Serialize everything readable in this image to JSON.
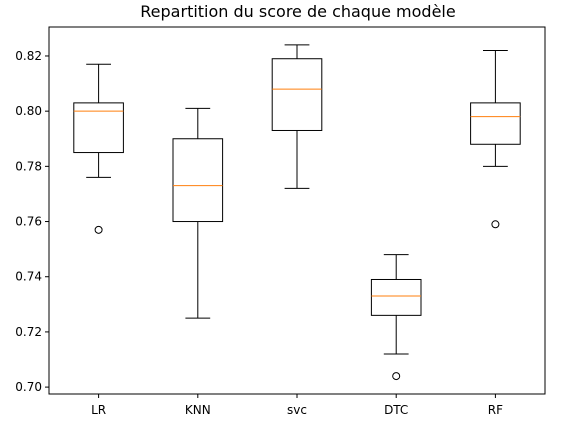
{
  "chart_data": {
    "type": "box",
    "title": "Repartition du score de chaque modèle",
    "xlabel": "",
    "ylabel": "",
    "ylim": [
      0.6975,
      0.8305
    ],
    "yticks": [
      0.7,
      0.72,
      0.74,
      0.76,
      0.78,
      0.8,
      0.82
    ],
    "ytick_labels": [
      "0.70",
      "0.72",
      "0.74",
      "0.76",
      "0.78",
      "0.80",
      "0.82"
    ],
    "categories": [
      "LR",
      "KNN",
      "svc",
      "DTC",
      "RF"
    ],
    "boxes": [
      {
        "name": "LR",
        "whisker_low": 0.776,
        "q1": 0.785,
        "median": 0.8,
        "q3": 0.803,
        "whisker_high": 0.817,
        "outliers": [
          0.757
        ]
      },
      {
        "name": "KNN",
        "whisker_low": 0.725,
        "q1": 0.76,
        "median": 0.773,
        "q3": 0.79,
        "whisker_high": 0.801,
        "outliers": []
      },
      {
        "name": "svc",
        "whisker_low": 0.772,
        "q1": 0.793,
        "median": 0.808,
        "q3": 0.819,
        "whisker_high": 0.824,
        "outliers": []
      },
      {
        "name": "DTC",
        "whisker_low": 0.712,
        "q1": 0.726,
        "median": 0.733,
        "q3": 0.739,
        "whisker_high": 0.748,
        "outliers": [
          0.704
        ]
      },
      {
        "name": "RF",
        "whisker_low": 0.78,
        "q1": 0.788,
        "median": 0.798,
        "q3": 0.803,
        "whisker_high": 0.822,
        "outliers": [
          0.759
        ]
      }
    ],
    "colors": {
      "box": "#000000",
      "median": "#ff7f0e",
      "outlier": "#000000"
    },
    "grid": false,
    "legend": "none"
  }
}
